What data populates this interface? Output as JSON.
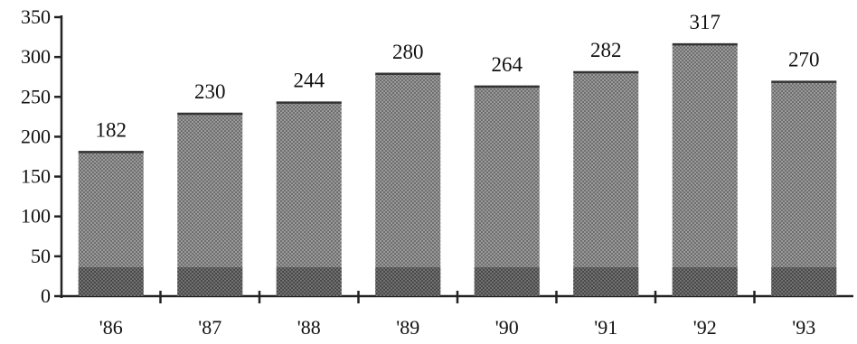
{
  "chart_data": {
    "type": "bar",
    "title": "",
    "xlabel": "",
    "ylabel": "",
    "categories": [
      "'86",
      "'87",
      "'88",
      "'89",
      "'90",
      "'91",
      "'92",
      "'93"
    ],
    "values": [
      182,
      230,
      244,
      280,
      264,
      282,
      317,
      270
    ],
    "ylim": [
      0,
      350
    ],
    "yticks": [
      "0",
      "50",
      "100",
      "150",
      "200",
      "250",
      "300",
      "350"
    ],
    "grid": false,
    "bar_color": "#8c8c8c",
    "bar_base_color": "#555555"
  }
}
